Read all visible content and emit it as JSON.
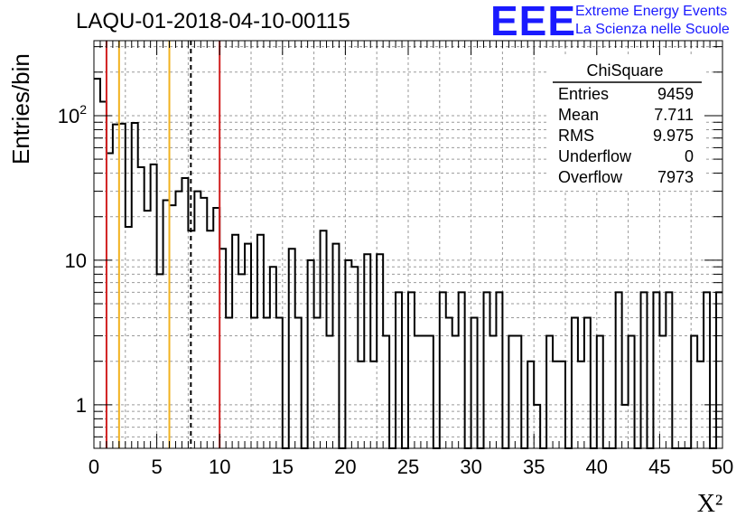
{
  "header": {
    "title": "LAQU-01-2018-04-10-00115"
  },
  "logo": {
    "mark": "EEE",
    "line1": "Extreme Energy Events",
    "line2": "La Scienza nelle Scuole",
    "color": "#1a1aff"
  },
  "stats": {
    "title": "ChiSquare",
    "rows": [
      {
        "label": "Entries",
        "value": "9459"
      },
      {
        "label": "Mean",
        "value": "7.711"
      },
      {
        "label": "RMS",
        "value": "9.975"
      },
      {
        "label": "Underflow",
        "value": "0"
      },
      {
        "label": "Overflow",
        "value": "7973"
      }
    ]
  },
  "chart_data": {
    "type": "histogram",
    "xlabel": "X²",
    "ylabel": "Entries/bin",
    "xlim": [
      0,
      50
    ],
    "ylim": [
      0.5,
      330
    ],
    "yscale": "log",
    "grid": true,
    "bin_width": 0.5,
    "xticks": [
      0,
      5,
      10,
      15,
      20,
      25,
      30,
      35,
      40,
      45,
      50
    ],
    "xtick_labels": [
      "0",
      "5",
      "10",
      "15",
      "20",
      "25",
      "30",
      "35",
      "40",
      "45",
      "50"
    ],
    "yticks": [
      1,
      10,
      100
    ],
    "ytick_labels": [
      "1",
      "10",
      "10²"
    ],
    "values": [
      180,
      125,
      55,
      87,
      88,
      17,
      89,
      44,
      22,
      46,
      8,
      26,
      24,
      30,
      37,
      16,
      30,
      27,
      16,
      23,
      12,
      4,
      15,
      8,
      13,
      4,
      15,
      4,
      9,
      4,
      0,
      12,
      4,
      0,
      10,
      4,
      16,
      3,
      13,
      0,
      10,
      9,
      2,
      11,
      2,
      11,
      3,
      0,
      6,
      0,
      6,
      3,
      3,
      3,
      0,
      6,
      4,
      3,
      6,
      0,
      4,
      0,
      6,
      3,
      6,
      0,
      3,
      3,
      0,
      2,
      1,
      0,
      3,
      2,
      2,
      0,
      4,
      2,
      4,
      0,
      3,
      0,
      0,
      6,
      1,
      3,
      0,
      6,
      0,
      6,
      3,
      6,
      0,
      0,
      0,
      3,
      2,
      6,
      0,
      6
    ],
    "vertical_lines": [
      {
        "x": 1,
        "color": "#d11f1f",
        "style": "solid"
      },
      {
        "x": 2,
        "color": "#f2b21f",
        "style": "solid"
      },
      {
        "x": 6,
        "color": "#f2b21f",
        "style": "solid"
      },
      {
        "x": 7.711,
        "color": "#000000",
        "style": "dashed"
      },
      {
        "x": 10,
        "color": "#d11f1f",
        "style": "solid"
      }
    ]
  }
}
